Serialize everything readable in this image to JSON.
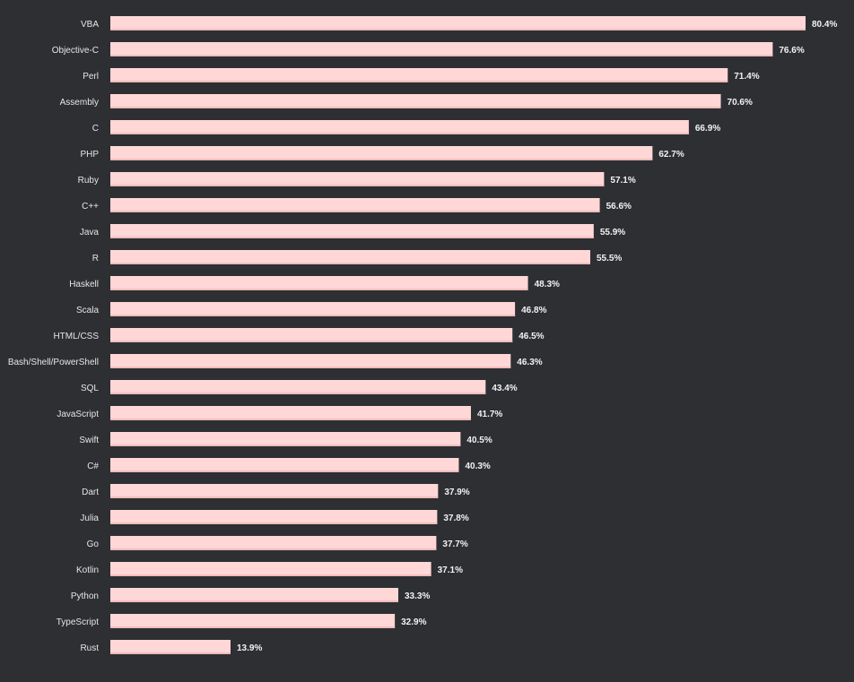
{
  "chart_data": {
    "type": "bar",
    "orientation": "horizontal",
    "categories": [
      "VBA",
      "Objective-C",
      "Perl",
      "Assembly",
      "C",
      "PHP",
      "Ruby",
      "C++",
      "Java",
      "R",
      "Haskell",
      "Scala",
      "HTML/CSS",
      "Bash/Shell/PowerShell",
      "SQL",
      "JavaScript",
      "Swift",
      "C#",
      "Dart",
      "Julia",
      "Go",
      "Kotlin",
      "Python",
      "TypeScript",
      "Rust"
    ],
    "values": [
      80.4,
      76.6,
      71.4,
      70.6,
      66.9,
      62.7,
      57.1,
      56.6,
      55.9,
      55.5,
      48.3,
      46.8,
      46.5,
      46.3,
      43.4,
      41.7,
      40.5,
      40.3,
      37.9,
      37.8,
      37.7,
      37.1,
      33.3,
      32.9,
      13.9
    ],
    "value_labels": [
      "80.4%",
      "76.6%",
      "71.4%",
      "70.6%",
      "66.9%",
      "62.7%",
      "57.1%",
      "56.6%",
      "55.9%",
      "55.5%",
      "48.3%",
      "46.8%",
      "46.5%",
      "46.3%",
      "43.4%",
      "41.7%",
      "40.5%",
      "40.3%",
      "37.9%",
      "37.8%",
      "37.7%",
      "37.1%",
      "33.3%",
      "32.9%",
      "13.9%"
    ],
    "title": "",
    "xlabel": "",
    "ylabel": "",
    "xlim": [
      0,
      80.4
    ],
    "grid": false,
    "legend": "none",
    "colors": {
      "background": "#2d2f33",
      "bar": "#ffd7d7",
      "bar_edge": "#f2bcbc",
      "text": "#e6e6e6",
      "value_text": "#f2f2f2"
    }
  }
}
